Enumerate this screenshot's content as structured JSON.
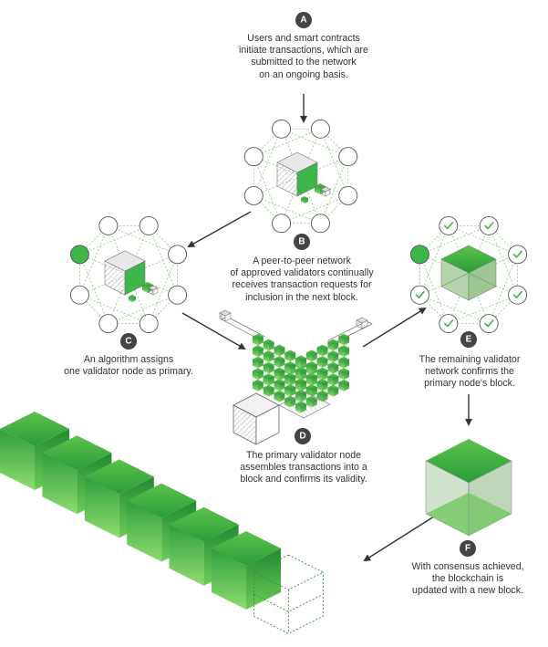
{
  "colors": {
    "green_bright": "#3db54a",
    "green_mid": "#2a9d3a",
    "green_dark": "#1e7a2c",
    "green_light": "#8ed97a",
    "outline": "#555555",
    "dot": "#6bbf5a",
    "badge": "#444444",
    "text": "#333333"
  },
  "steps": [
    {
      "letter": "A",
      "caption": "Users and smart contracts\ninitiate transactions, which are\nsubmitted to the network\non an ongoing basis."
    },
    {
      "letter": "B",
      "caption": "A peer-to-peer network\nof approved validators continually\nreceives transaction requests for\ninclusion in the next block."
    },
    {
      "letter": "C",
      "caption": "An algorithm assigns\none validator node as primary."
    },
    {
      "letter": "D",
      "caption": "The primary validator node\nassembles transactions into a\nblock and confirms its validity."
    },
    {
      "letter": "E",
      "caption": "The remaining validator\nnetwork confirms the\nprimary node's block."
    },
    {
      "letter": "F",
      "caption": "With consensus achieved,\nthe blockchain is\nupdated with a new block."
    }
  ]
}
